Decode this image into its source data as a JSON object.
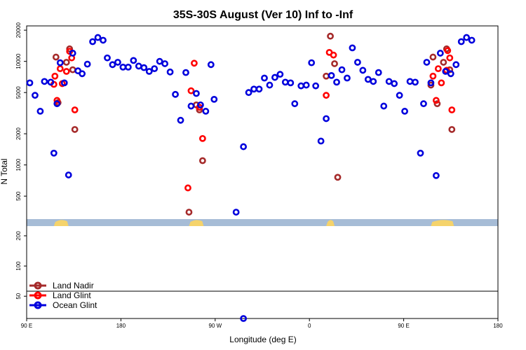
{
  "chart_data": {
    "type": "scatter",
    "title": "35S-30S August (Ver 10)   Inf to -Inf",
    "xlabel": "Longitude (deg E)",
    "ylabel": "N Total",
    "x_scale": "linear",
    "y_scale": "log",
    "xlim": [
      90,
      540
    ],
    "ylim_upper_panel": [
      300,
      22000
    ],
    "ylim_lower_panel": [
      30,
      250
    ],
    "x_ticks": [
      {
        "value": 90,
        "label": "90 E"
      },
      {
        "value": 180,
        "label": "180"
      },
      {
        "value": 270,
        "label": "90 W"
      },
      {
        "value": 360,
        "label": "0"
      },
      {
        "value": 450,
        "label": "90 E"
      },
      {
        "value": 540,
        "label": "180"
      }
    ],
    "y_ticks_upper": [
      {
        "value": 500,
        "label": "500"
      },
      {
        "value": 1000,
        "label": "1000"
      },
      {
        "value": 2000,
        "label": "2000"
      },
      {
        "value": 5000,
        "label": "5000"
      },
      {
        "value": 10000,
        "label": "10000"
      },
      {
        "value": 20000,
        "label": "20000"
      }
    ],
    "y_ticks_lower": [
      {
        "value": 50,
        "label": "50"
      },
      {
        "value": 100,
        "label": "100"
      },
      {
        "value": 200,
        "label": "200"
      }
    ],
    "legend": {
      "placement": "bottom-left"
    },
    "series": [
      {
        "name": "Land Nadir",
        "color": "#a52a2a",
        "points": [
          {
            "x": 118,
            "y": 11000
          },
          {
            "x": 120,
            "y": 4000
          },
          {
            "x": 128,
            "y": 9800
          },
          {
            "x": 131,
            "y": 13200
          },
          {
            "x": 134,
            "y": 8300
          },
          {
            "x": 136,
            "y": 2200
          },
          {
            "x": 245,
            "y": 350
          },
          {
            "x": 252,
            "y": 3800
          },
          {
            "x": 255,
            "y": 3400
          },
          {
            "x": 258,
            "y": 1100
          },
          {
            "x": 376,
            "y": 7200
          },
          {
            "x": 380,
            "y": 17500
          },
          {
            "x": 384,
            "y": 9500
          },
          {
            "x": 387,
            "y": 760
          },
          {
            "x": 476,
            "y": 5900
          },
          {
            "x": 478,
            "y": 11000
          },
          {
            "x": 482,
            "y": 3900
          },
          {
            "x": 488,
            "y": 9800
          },
          {
            "x": 491,
            "y": 13200
          },
          {
            "x": 494,
            "y": 8300
          },
          {
            "x": 496,
            "y": 2200
          }
        ]
      },
      {
        "name": "Land Glint",
        "color": "#ff0000",
        "points": [
          {
            "x": 116,
            "y": 6000
          },
          {
            "x": 117,
            "y": 7200
          },
          {
            "x": 119,
            "y": 4200
          },
          {
            "x": 122,
            "y": 8500
          },
          {
            "x": 124,
            "y": 6100
          },
          {
            "x": 128,
            "y": 8000
          },
          {
            "x": 131,
            "y": 12500
          },
          {
            "x": 133,
            "y": 10800
          },
          {
            "x": 136,
            "y": 3400
          },
          {
            "x": 244,
            "y": 600
          },
          {
            "x": 247,
            "y": 5200
          },
          {
            "x": 250,
            "y": 9600
          },
          {
            "x": 255,
            "y": 3600
          },
          {
            "x": 258,
            "y": 1800
          },
          {
            "x": 376,
            "y": 4700
          },
          {
            "x": 379,
            "y": 12200
          },
          {
            "x": 383,
            "y": 11500
          },
          {
            "x": 478,
            "y": 7200
          },
          {
            "x": 481,
            "y": 4200
          },
          {
            "x": 483,
            "y": 8500
          },
          {
            "x": 486,
            "y": 6200
          },
          {
            "x": 491,
            "y": 8200
          },
          {
            "x": 492,
            "y": 12700
          },
          {
            "x": 494,
            "y": 10800
          },
          {
            "x": 496,
            "y": 3400
          }
        ]
      },
      {
        "name": "Ocean Glint",
        "color": "#0000dd",
        "points": [
          {
            "x": 93,
            "y": 6200
          },
          {
            "x": 98,
            "y": 4700
          },
          {
            "x": 103,
            "y": 3300
          },
          {
            "x": 107,
            "y": 6400
          },
          {
            "x": 113,
            "y": 6300
          },
          {
            "x": 116,
            "y": 1300
          },
          {
            "x": 119,
            "y": 3900
          },
          {
            "x": 122,
            "y": 9700
          },
          {
            "x": 126,
            "y": 6200
          },
          {
            "x": 130,
            "y": 800
          },
          {
            "x": 134,
            "y": 12000
          },
          {
            "x": 139,
            "y": 8100
          },
          {
            "x": 143,
            "y": 7600
          },
          {
            "x": 148,
            "y": 9400
          },
          {
            "x": 153,
            "y": 15500
          },
          {
            "x": 158,
            "y": 17000
          },
          {
            "x": 163,
            "y": 16000
          },
          {
            "x": 167,
            "y": 10800
          },
          {
            "x": 172,
            "y": 9300
          },
          {
            "x": 177,
            "y": 9800
          },
          {
            "x": 182,
            "y": 8800
          },
          {
            "x": 187,
            "y": 8800
          },
          {
            "x": 192,
            "y": 10200
          },
          {
            "x": 197,
            "y": 9000
          },
          {
            "x": 202,
            "y": 8700
          },
          {
            "x": 207,
            "y": 8000
          },
          {
            "x": 212,
            "y": 8500
          },
          {
            "x": 217,
            "y": 10000
          },
          {
            "x": 222,
            "y": 9500
          },
          {
            "x": 227,
            "y": 7900
          },
          {
            "x": 232,
            "y": 4800
          },
          {
            "x": 237,
            "y": 2700
          },
          {
            "x": 242,
            "y": 7800
          },
          {
            "x": 247,
            "y": 3700
          },
          {
            "x": 252,
            "y": 4900
          },
          {
            "x": 256,
            "y": 3800
          },
          {
            "x": 261,
            "y": 3300
          },
          {
            "x": 266,
            "y": 9300
          },
          {
            "x": 269,
            "y": 4300
          },
          {
            "x": 290,
            "y": 350
          },
          {
            "x": 297,
            "y": 1500
          },
          {
            "x": 302,
            "y": 5000
          },
          {
            "x": 307,
            "y": 5400
          },
          {
            "x": 312,
            "y": 5400
          },
          {
            "x": 317,
            "y": 6900
          },
          {
            "x": 322,
            "y": 5900
          },
          {
            "x": 327,
            "y": 7000
          },
          {
            "x": 332,
            "y": 7500
          },
          {
            "x": 337,
            "y": 6300
          },
          {
            "x": 342,
            "y": 6200
          },
          {
            "x": 346,
            "y": 3900
          },
          {
            "x": 352,
            "y": 5800
          },
          {
            "x": 357,
            "y": 5900
          },
          {
            "x": 362,
            "y": 9700
          },
          {
            "x": 366,
            "y": 5800
          },
          {
            "x": 371,
            "y": 1700
          },
          {
            "x": 376,
            "y": 2800
          },
          {
            "x": 381,
            "y": 7300
          },
          {
            "x": 386,
            "y": 6300
          },
          {
            "x": 391,
            "y": 8300
          },
          {
            "x": 396,
            "y": 6900
          },
          {
            "x": 401,
            "y": 13500
          },
          {
            "x": 406,
            "y": 9800
          },
          {
            "x": 411,
            "y": 8200
          },
          {
            "x": 416,
            "y": 6700
          },
          {
            "x": 421,
            "y": 6400
          },
          {
            "x": 426,
            "y": 7800
          },
          {
            "x": 431,
            "y": 3700
          },
          {
            "x": 436,
            "y": 6400
          },
          {
            "x": 441,
            "y": 6100
          },
          {
            "x": 446,
            "y": 4700
          },
          {
            "x": 451,
            "y": 3300
          },
          {
            "x": 456,
            "y": 6400
          },
          {
            "x": 461,
            "y": 6300
          },
          {
            "x": 466,
            "y": 1300
          },
          {
            "x": 469,
            "y": 3900
          },
          {
            "x": 472,
            "y": 9800
          },
          {
            "x": 476,
            "y": 6200
          },
          {
            "x": 481,
            "y": 790
          },
          {
            "x": 485,
            "y": 12000
          },
          {
            "x": 490,
            "y": 8000
          },
          {
            "x": 495,
            "y": 7600
          },
          {
            "x": 500,
            "y": 9300
          },
          {
            "x": 505,
            "y": 15500
          },
          {
            "x": 510,
            "y": 17000
          },
          {
            "x": 515,
            "y": 16000
          }
        ]
      }
    ],
    "lower_panel_points": [
      {
        "series": "Ocean Glint",
        "x": 297,
        "y": 30
      }
    ]
  }
}
